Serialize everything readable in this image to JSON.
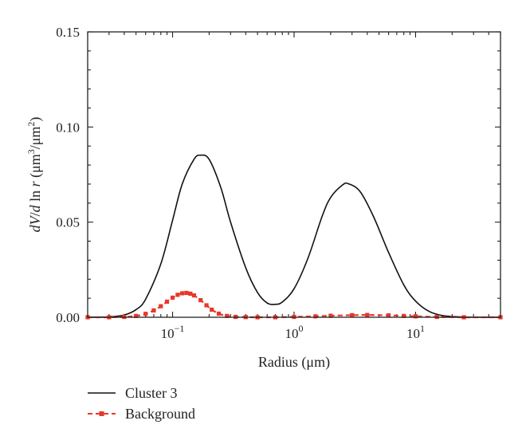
{
  "chart_data": {
    "type": "line",
    "xscale": "log",
    "xlim": [
      0.02,
      50
    ],
    "ylim": [
      0,
      0.15
    ],
    "xlabel": "Radius (μm)",
    "ylabel": "dV/d ln r (μm3/μm2)",
    "xticks": [
      {
        "value": 0.1,
        "base": "10",
        "exp": "−1"
      },
      {
        "value": 1,
        "base": "10",
        "exp": "0"
      },
      {
        "value": 10,
        "base": "10",
        "exp": "1"
      }
    ],
    "yticks": [
      {
        "value": 0,
        "label": "0.00"
      },
      {
        "value": 0.05,
        "label": "0.05"
      },
      {
        "value": 0.1,
        "label": "0.10"
      },
      {
        "value": 0.15,
        "label": "0.15"
      }
    ],
    "legend_position": "bottom-left, below plot",
    "series": [
      {
        "name": "Cluster 3",
        "style": "solid",
        "color": "#111111",
        "x": [
          0.02,
          0.03,
          0.04,
          0.05,
          0.06,
          0.08,
          0.1,
          0.12,
          0.15,
          0.17,
          0.2,
          0.25,
          0.3,
          0.4,
          0.5,
          0.6,
          0.7,
          0.8,
          1.0,
          1.3,
          1.7,
          2.0,
          2.5,
          2.8,
          3.5,
          4.5,
          6,
          8,
          10,
          13,
          17,
          25,
          35,
          50
        ],
        "y": [
          0.0,
          0.0002,
          0.0012,
          0.004,
          0.0095,
          0.028,
          0.051,
          0.07,
          0.083,
          0.0852,
          0.083,
          0.068,
          0.05,
          0.026,
          0.013,
          0.0075,
          0.0068,
          0.008,
          0.015,
          0.031,
          0.053,
          0.063,
          0.0695,
          0.0702,
          0.066,
          0.053,
          0.034,
          0.017,
          0.0085,
          0.003,
          0.0008,
          0.0001,
          0.0,
          0.0
        ]
      },
      {
        "name": "Background",
        "style": "dashed-square-markers",
        "color": "#e8372b",
        "x": [
          0.02,
          0.03,
          0.04,
          0.05,
          0.06,
          0.07,
          0.08,
          0.09,
          0.1,
          0.11,
          0.12,
          0.13,
          0.14,
          0.15,
          0.17,
          0.19,
          0.21,
          0.24,
          0.28,
          0.33,
          0.4,
          0.5,
          0.7,
          1,
          1.5,
          2,
          3,
          4,
          6,
          8,
          10,
          15,
          25,
          50
        ],
        "y": [
          0.0,
          0.0,
          0.0002,
          0.0007,
          0.0018,
          0.0036,
          0.0058,
          0.0082,
          0.0103,
          0.0118,
          0.0126,
          0.0128,
          0.0124,
          0.0115,
          0.009,
          0.0063,
          0.004,
          0.0019,
          0.0007,
          0.0002,
          0.0001,
          0.0,
          0.0,
          0.0002,
          0.0005,
          0.0008,
          0.0011,
          0.0012,
          0.001,
          0.0007,
          0.0005,
          0.0002,
          0.0,
          0.0
        ]
      }
    ]
  }
}
